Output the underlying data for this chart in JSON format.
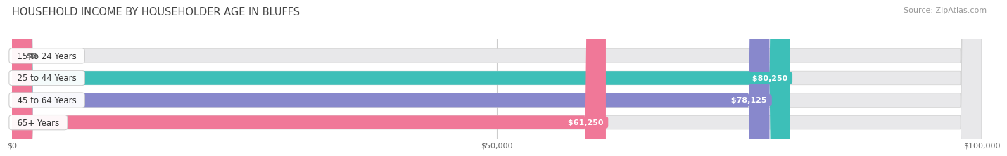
{
  "title": "HOUSEHOLD INCOME BY HOUSEHOLDER AGE IN BLUFFS",
  "source": "Source: ZipAtlas.com",
  "categories": [
    "15 to 24 Years",
    "25 to 44 Years",
    "45 to 64 Years",
    "65+ Years"
  ],
  "values": [
    0,
    80250,
    78125,
    61250
  ],
  "bar_colors": [
    "#c4a0d0",
    "#3dbfb8",
    "#8888cc",
    "#f07898"
  ],
  "bar_bg_color": "#e8e8ea",
  "value_labels": [
    "$0",
    "$80,250",
    "$78,125",
    "$61,250"
  ],
  "x_ticks": [
    0,
    50000,
    100000
  ],
  "x_tick_labels": [
    "$0",
    "$50,000",
    "$100,000"
  ],
  "xlim": [
    0,
    100000
  ],
  "fig_bg_color": "#ffffff",
  "bar_height": 0.62,
  "title_fontsize": 10.5,
  "source_fontsize": 8,
  "label_fontsize": 8.5,
  "value_fontsize": 8,
  "tick_fontsize": 8
}
